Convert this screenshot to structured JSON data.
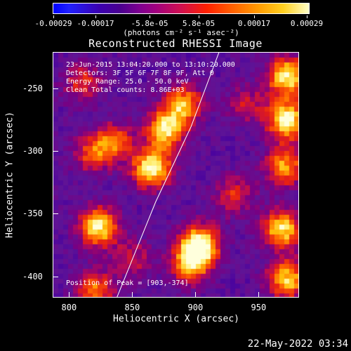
{
  "colorbar": {
    "tick_labels": [
      "-0.00029",
      "-0.00017",
      "-5.8e-05",
      "5.8e-05",
      "0.00017",
      "0.00029"
    ],
    "unit": "(photons cm⁻² s⁻¹ asec⁻²)"
  },
  "title": "Reconstructed RHESSI Image",
  "annotations": {
    "time": "23-Jun-2015 13:04:20.000 to 13:10:20.000",
    "detectors": "Detectors: 3F 5F 6F 7F 8F 9F, Att 0",
    "energy": "Energy Range: 25.0 - 50.0 keV",
    "clean": "Clean    Total counts: 8.86E+03",
    "peak": "Position of Peak = [903,-374]"
  },
  "axes": {
    "xlabel": "Heliocentric X (arcsec)",
    "ylabel": "Heliocentric Y (arcsec)",
    "xticks": [
      "800",
      "850",
      "900",
      "950"
    ],
    "yticks": [
      "-250",
      "-300",
      "-350",
      "-400"
    ]
  },
  "timestamp": "22-May-2022 03:34",
  "chart_data": {
    "type": "heatmap",
    "title": "Reconstructed RHESSI Image",
    "xlabel": "Heliocentric X (arcsec)",
    "ylabel": "Heliocentric Y (arcsec)",
    "xlim": [
      787,
      982
    ],
    "ylim": [
      -417,
      -221
    ],
    "color_range": [
      -0.00029,
      0.00029
    ],
    "peak": [
      903,
      -374
    ],
    "sources": [
      {
        "x": 890,
        "y": -262,
        "amp": 0.7
      },
      {
        "x": 876,
        "y": -282,
        "amp": 0.85
      },
      {
        "x": 865,
        "y": -313,
        "amp": 0.95
      },
      {
        "x": 835,
        "y": -292,
        "amp": 0.55
      },
      {
        "x": 818,
        "y": -302,
        "amp": 0.5
      },
      {
        "x": 823,
        "y": -360,
        "amp": 0.9
      },
      {
        "x": 903,
        "y": -374,
        "amp": 1.0
      },
      {
        "x": 895,
        "y": -390,
        "amp": 0.7
      },
      {
        "x": 972,
        "y": -240,
        "amp": 0.9
      },
      {
        "x": 972,
        "y": -275,
        "amp": 0.95
      },
      {
        "x": 970,
        "y": -312,
        "amp": 0.7
      },
      {
        "x": 968,
        "y": -362,
        "amp": 0.85
      },
      {
        "x": 972,
        "y": -402,
        "amp": 0.8
      },
      {
        "x": 820,
        "y": -410,
        "amp": 0.6
      },
      {
        "x": 810,
        "y": -245,
        "amp": 0.45
      },
      {
        "x": 930,
        "y": -335,
        "amp": 0.45
      },
      {
        "x": 850,
        "y": -385,
        "amp": 0.35
      },
      {
        "x": 940,
        "y": -262,
        "amp": 0.35
      }
    ],
    "limb_curve": [
      [
        837,
        -417
      ],
      [
        868,
        -340
      ],
      [
        896,
        -280
      ],
      [
        918,
        -221
      ]
    ]
  }
}
